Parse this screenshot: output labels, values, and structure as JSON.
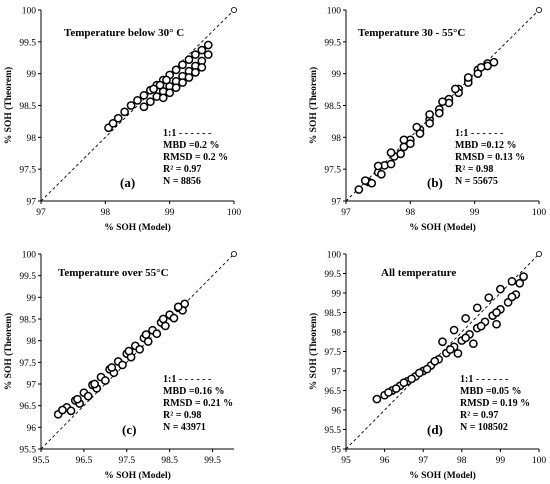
{
  "chart_data": [
    {
      "type": "scatter",
      "panel_label": "(a)",
      "title": "Temperature below 30° C",
      "xlabel": "% SOH (Model)",
      "ylabel": "% SOH (Theorem)",
      "xlim": [
        97,
        100
      ],
      "ylim": [
        97,
        100
      ],
      "xticks": [
        "97",
        "98",
        "99",
        "100"
      ],
      "yticks": [
        "97",
        "97.5",
        "98",
        "98.5",
        "99",
        "99.5",
        "100"
      ],
      "legend": "1:1 - - - - - -",
      "stats": [
        "MBD =0.2 %",
        "RMSD = 0.2 %",
        "R² = 0.97",
        "N = 8856"
      ],
      "x": [
        98.05,
        98.12,
        98.2,
        98.3,
        98.4,
        98.5,
        98.6,
        98.7,
        98.8,
        98.9,
        99.0,
        99.1,
        99.2,
        99.3,
        99.4,
        99.5,
        99.6,
        98.6,
        98.7,
        98.8,
        98.9,
        99.0,
        99.1,
        99.2,
        99.3,
        99.4,
        99.5,
        99.6,
        98.9,
        99.0,
        99.1,
        99.2,
        99.3,
        99.4,
        99.5,
        98.75,
        98.85,
        98.95
      ],
      "y": [
        98.15,
        98.22,
        98.3,
        98.4,
        98.5,
        98.58,
        98.66,
        98.74,
        98.82,
        98.9,
        98.98,
        99.06,
        99.14,
        99.22,
        99.3,
        99.37,
        99.45,
        98.48,
        98.56,
        98.64,
        98.72,
        98.8,
        98.88,
        98.96,
        99.04,
        99.12,
        99.2,
        99.3,
        98.62,
        98.7,
        98.78,
        98.86,
        98.94,
        99.02,
        99.1,
        98.76,
        98.82,
        98.9
      ]
    },
    {
      "type": "scatter",
      "panel_label": "(b)",
      "title": "Temperature  30 - 55°C",
      "xlabel": "% SOH (Model)",
      "ylabel": "% SOH (Theorem)",
      "xlim": [
        97,
        100
      ],
      "ylim": [
        97,
        100
      ],
      "xticks": [
        "97",
        "98",
        "99",
        "100"
      ],
      "yticks": [
        "97",
        "97.5",
        "98",
        "98.5",
        "99",
        "99.5",
        "100"
      ],
      "legend": "1:1 - - - - - -",
      "stats": [
        "MBD =0.12 %",
        "RMSD = 0.13 %",
        "R² = 0.98",
        "N = 55675"
      ],
      "x": [
        97.2,
        97.35,
        97.5,
        97.6,
        97.75,
        97.9,
        98.0,
        98.15,
        98.3,
        98.45,
        98.6,
        98.75,
        98.9,
        99.05,
        99.2,
        99.3,
        97.4,
        97.55,
        97.7,
        97.85,
        98.0,
        98.15,
        98.3,
        98.45,
        98.6,
        98.75,
        98.9,
        99.05,
        99.2,
        97.3,
        97.5,
        97.7,
        97.9,
        98.1,
        98.3,
        98.5,
        98.7,
        98.9,
        99.1
      ],
      "y": [
        97.18,
        97.3,
        97.45,
        97.56,
        97.7,
        97.85,
        97.96,
        98.12,
        98.28,
        98.44,
        98.6,
        98.76,
        98.92,
        99.06,
        99.16,
        99.18,
        97.28,
        97.42,
        97.58,
        97.74,
        97.9,
        98.06,
        98.22,
        98.38,
        98.54,
        98.7,
        98.86,
        99.0,
        99.12,
        97.32,
        97.55,
        97.76,
        97.96,
        98.16,
        98.36,
        98.56,
        98.76,
        98.94,
        99.1
      ]
    },
    {
      "type": "scatter",
      "panel_label": "(c)",
      "title": "Temperature  over 55°C",
      "xlabel": "% SOH (Model)",
      "ylabel": "% SOH (Theorem)",
      "xlim": [
        95.5,
        100
      ],
      "ylim": [
        95.5,
        100
      ],
      "xticks": [
        "95.5",
        "96.5",
        "97.5",
        "98.5",
        "99.5"
      ],
      "yticks": [
        "95.5",
        "96",
        "96.5",
        "97",
        "97.5",
        "98",
        "98.5",
        "99",
        "99.5",
        "100"
      ],
      "legend": "1:1 - - - - - -",
      "stats": [
        "MBD =0.16 %",
        "RMSD = 0.21 %",
        "R² = 0.98",
        "N = 43971"
      ],
      "x": [
        95.9,
        96.1,
        96.3,
        96.5,
        96.7,
        96.9,
        97.1,
        97.3,
        97.5,
        97.7,
        97.9,
        98.1,
        98.3,
        98.5,
        98.7,
        98.85,
        96.2,
        96.4,
        96.6,
        96.8,
        97.0,
        97.2,
        97.4,
        97.6,
        97.8,
        98.0,
        98.2,
        98.4,
        98.6,
        98.8,
        96.0,
        96.35,
        96.75,
        97.15,
        97.55,
        97.95,
        98.35,
        98.7
      ],
      "y": [
        96.3,
        96.46,
        96.62,
        96.8,
        96.98,
        97.16,
        97.34,
        97.52,
        97.7,
        97.88,
        98.06,
        98.24,
        98.42,
        98.6,
        98.76,
        98.85,
        96.38,
        96.55,
        96.72,
        96.9,
        97.08,
        97.26,
        97.44,
        97.62,
        97.8,
        97.98,
        98.16,
        98.34,
        98.52,
        98.7,
        96.4,
        96.65,
        97.0,
        97.38,
        97.76,
        98.14,
        98.5,
        98.78
      ]
    },
    {
      "type": "scatter",
      "panel_label": "(d)",
      "title": "All temperature",
      "xlabel": "% SOH (Model)",
      "ylabel": "% SOH (Theorem)",
      "xlim": [
        95,
        100
      ],
      "ylim": [
        95,
        100
      ],
      "xticks": [
        "95",
        "96",
        "97",
        "98",
        "99",
        "100"
      ],
      "yticks": [
        "95",
        "95.5",
        "96",
        "96.5",
        "97",
        "97.5",
        "98",
        "98.5",
        "99",
        "99.5",
        "100"
      ],
      "legend": "1:1 - - - - - -",
      "stats": [
        "MBD =0.05 %",
        "RMSD = 0.19 %",
        "R² = 0.97",
        "N = 108502"
      ],
      "x": [
        95.8,
        96.0,
        96.2,
        96.4,
        96.6,
        96.8,
        97.0,
        97.2,
        97.4,
        97.6,
        97.8,
        98.0,
        98.2,
        98.4,
        98.6,
        98.8,
        99.0,
        99.2,
        99.4,
        99.6,
        96.1,
        96.5,
        96.9,
        97.3,
        97.7,
        98.1,
        98.5,
        98.9,
        99.3,
        97.5,
        97.8,
        98.1,
        98.4,
        98.7,
        99.0,
        99.3,
        96.3,
        96.7,
        97.1,
        97.9,
        98.3,
        98.9,
        99.5
      ],
      "y": [
        96.28,
        96.38,
        96.5,
        96.62,
        96.74,
        96.86,
        97.0,
        97.14,
        97.3,
        97.46,
        97.62,
        97.78,
        97.94,
        98.1,
        98.26,
        98.42,
        98.58,
        98.76,
        98.96,
        99.42,
        96.45,
        96.7,
        96.95,
        97.25,
        97.55,
        97.85,
        98.15,
        98.5,
        98.9,
        97.75,
        98.05,
        98.35,
        98.62,
        98.88,
        99.1,
        99.3,
        96.55,
        96.8,
        97.05,
        97.45,
        97.7,
        98.2,
        99.25
      ]
    }
  ]
}
